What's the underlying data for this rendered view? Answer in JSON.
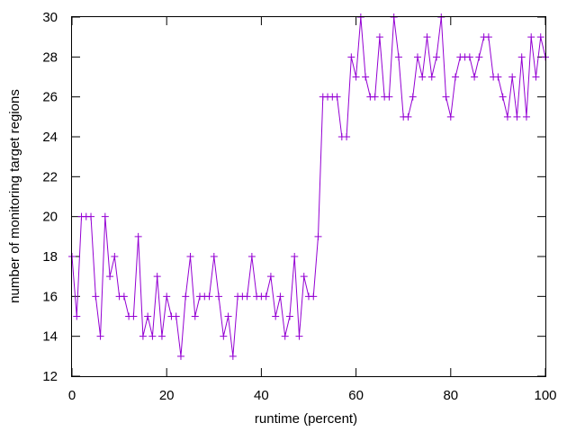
{
  "chart_data": {
    "type": "line",
    "xlabel": "runtime (percent)",
    "ylabel": "number of monitoring target regions",
    "xlim": [
      0,
      100
    ],
    "ylim": [
      12,
      30
    ],
    "xticks": [
      "0",
      "20",
      "40",
      "60",
      "80",
      "100"
    ],
    "yticks": [
      "12",
      "14",
      "16",
      "18",
      "20",
      "22",
      "24",
      "26",
      "28",
      "30"
    ],
    "grid": false,
    "legend": "none",
    "marker": "plus",
    "line_color": "#9400d3",
    "series": [
      {
        "x": [
          0,
          1,
          2,
          3,
          4,
          5,
          6,
          7,
          8,
          9,
          10,
          11,
          12,
          13,
          14,
          15,
          16,
          17,
          18,
          19,
          20,
          21,
          22,
          23,
          24,
          25,
          26,
          27,
          28,
          29,
          30,
          31,
          32,
          33,
          34,
          35,
          36,
          37,
          38,
          39,
          40,
          41,
          42,
          43,
          44,
          45,
          46,
          47,
          48,
          49,
          50,
          51,
          52,
          53,
          54,
          55,
          56,
          57,
          58,
          59,
          60,
          61,
          62,
          63,
          64,
          65,
          66,
          67,
          68,
          69,
          70,
          71,
          72,
          73,
          74,
          75,
          76,
          77,
          78,
          79,
          80,
          81,
          82,
          83,
          84,
          85,
          86,
          87,
          88,
          89,
          90,
          91,
          92,
          93,
          94,
          95,
          96,
          97,
          98,
          99,
          100
        ],
        "values": [
          18,
          15,
          20,
          20,
          20,
          16,
          14,
          20,
          17,
          18,
          16,
          16,
          15,
          15,
          19,
          14,
          15,
          14,
          17,
          14,
          16,
          15,
          15,
          13,
          16,
          18,
          15,
          16,
          16,
          16,
          18,
          16,
          14,
          15,
          13,
          16,
          16,
          16,
          18,
          16,
          16,
          16,
          17,
          15,
          16,
          14,
          15,
          18,
          14,
          17,
          16,
          16,
          19,
          26,
          26,
          26,
          26,
          24,
          24,
          28,
          27,
          30,
          27,
          26,
          26,
          29,
          26,
          26,
          30,
          28,
          25,
          25,
          26,
          28,
          27,
          29,
          27,
          28,
          30,
          26,
          25,
          27,
          28,
          28,
          28,
          27,
          28,
          29,
          29,
          27,
          27,
          26,
          25,
          27,
          25,
          28,
          25,
          29,
          27,
          29,
          28
        ]
      }
    ]
  }
}
